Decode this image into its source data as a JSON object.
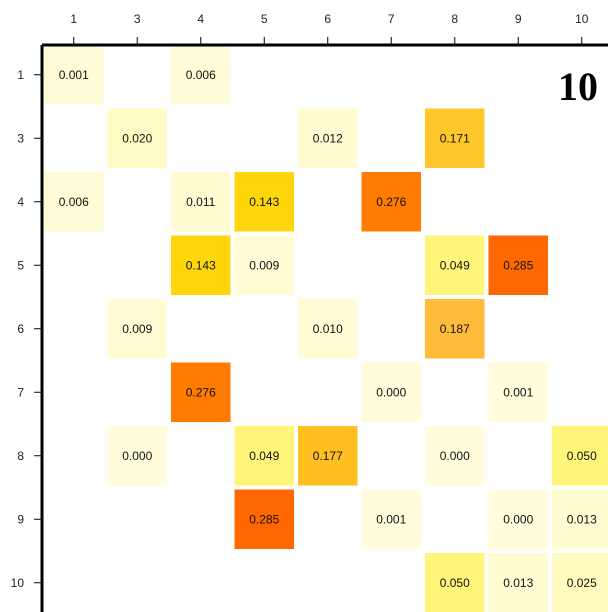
{
  "chart_data": {
    "type": "heatmap",
    "panel_label": "10",
    "x_ticks": [
      "1",
      "3",
      "4",
      "5",
      "6",
      "7",
      "8",
      "9",
      "10"
    ],
    "y_ticks": [
      "1",
      "3",
      "4",
      "5",
      "6",
      "7",
      "8",
      "9",
      "10"
    ],
    "cells": [
      {
        "row": "1",
        "col": "1",
        "value": 0.001,
        "label": "0.001",
        "color": "#fffdd8"
      },
      {
        "row": "1",
        "col": "4",
        "value": 0.006,
        "label": "0.006",
        "color": "#fffdd8"
      },
      {
        "row": "3",
        "col": "3",
        "value": 0.02,
        "label": "0.020",
        "color": "#fffbc4"
      },
      {
        "row": "3",
        "col": "6",
        "value": 0.012,
        "label": "0.012",
        "color": "#fffcd2"
      },
      {
        "row": "3",
        "col": "8",
        "value": 0.171,
        "label": "0.171",
        "color": "#ffc72c"
      },
      {
        "row": "4",
        "col": "1",
        "value": 0.006,
        "label": "0.006",
        "color": "#fffdd8"
      },
      {
        "row": "4",
        "col": "4",
        "value": 0.011,
        "label": "0.011",
        "color": "#fffcd2"
      },
      {
        "row": "4",
        "col": "5",
        "value": 0.143,
        "label": "0.143",
        "color": "#ffd60b"
      },
      {
        "row": "4",
        "col": "7",
        "value": 0.276,
        "label": "0.276",
        "color": "#ff7c00"
      },
      {
        "row": "5",
        "col": "4",
        "value": 0.143,
        "label": "0.143",
        "color": "#ffd60b"
      },
      {
        "row": "5",
        "col": "5",
        "value": 0.009,
        "label": "0.009",
        "color": "#fffcd6"
      },
      {
        "row": "5",
        "col": "8",
        "value": 0.049,
        "label": "0.049",
        "color": "#fff57a"
      },
      {
        "row": "5",
        "col": "9",
        "value": 0.285,
        "label": "0.285",
        "color": "#ff6700"
      },
      {
        "row": "6",
        "col": "3",
        "value": 0.009,
        "label": "0.009",
        "color": "#fffcd6"
      },
      {
        "row": "6",
        "col": "6",
        "value": 0.01,
        "label": "0.010",
        "color": "#fffcd6"
      },
      {
        "row": "6",
        "col": "8",
        "value": 0.187,
        "label": "0.187",
        "color": "#ffbc3a"
      },
      {
        "row": "7",
        "col": "4",
        "value": 0.276,
        "label": "0.276",
        "color": "#ff7c00"
      },
      {
        "row": "7",
        "col": "7",
        "value": 0.0,
        "label": "0.000",
        "color": "#fffddc"
      },
      {
        "row": "7",
        "col": "9",
        "value": 0.001,
        "label": "0.001",
        "color": "#fffddc"
      },
      {
        "row": "8",
        "col": "3",
        "value": 0.0,
        "label": "0.000",
        "color": "#fffddc"
      },
      {
        "row": "8",
        "col": "5",
        "value": 0.049,
        "label": "0.049",
        "color": "#fff57a"
      },
      {
        "row": "8",
        "col": "6",
        "value": 0.177,
        "label": "0.177",
        "color": "#ffbf20"
      },
      {
        "row": "8",
        "col": "8",
        "value": 0.0,
        "label": "0.000",
        "color": "#fffddc"
      },
      {
        "row": "8",
        "col": "10",
        "value": 0.05,
        "label": "0.050",
        "color": "#fff57a"
      },
      {
        "row": "9",
        "col": "5",
        "value": 0.285,
        "label": "0.285",
        "color": "#ff6700"
      },
      {
        "row": "9",
        "col": "7",
        "value": 0.001,
        "label": "0.001",
        "color": "#fffddc"
      },
      {
        "row": "9",
        "col": "9",
        "value": 0.0,
        "label": "0.000",
        "color": "#fffddc"
      },
      {
        "row": "9",
        "col": "10",
        "value": 0.013,
        "label": "0.013",
        "color": "#fffcd2"
      },
      {
        "row": "10",
        "col": "8",
        "value": 0.05,
        "label": "0.050",
        "color": "#fff57a"
      },
      {
        "row": "10",
        "col": "9",
        "value": 0.013,
        "label": "0.013",
        "color": "#fffcd2"
      },
      {
        "row": "10",
        "col": "10",
        "value": 0.025,
        "label": "0.025",
        "color": "#fffbbe"
      }
    ],
    "legend": "none",
    "grid": false
  }
}
